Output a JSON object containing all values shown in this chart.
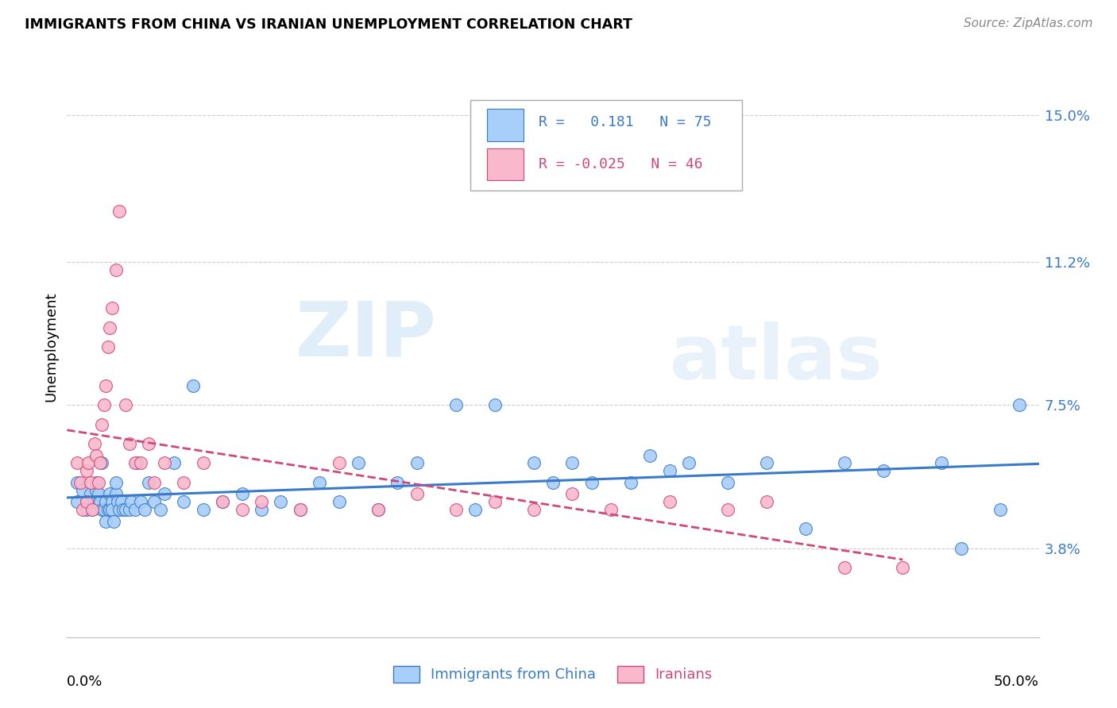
{
  "title": "IMMIGRANTS FROM CHINA VS IRANIAN UNEMPLOYMENT CORRELATION CHART",
  "source": "Source: ZipAtlas.com",
  "ylabel": "Unemployment",
  "yticks": [
    0.038,
    0.075,
    0.112,
    0.15
  ],
  "ytick_labels": [
    "3.8%",
    "7.5%",
    "11.2%",
    "15.0%"
  ],
  "xlim": [
    0.0,
    0.5
  ],
  "ylim": [
    0.015,
    0.165
  ],
  "color_china": "#A8CEFA",
  "color_iran": "#FAB8CC",
  "color_line_china": "#3A7AC8",
  "color_line_iran": "#D04878",
  "watermark_zip": "ZIP",
  "watermark_atlas": "atlas",
  "china_x": [
    0.005,
    0.005,
    0.008,
    0.01,
    0.01,
    0.012,
    0.013,
    0.014,
    0.015,
    0.015,
    0.016,
    0.017,
    0.018,
    0.018,
    0.019,
    0.02,
    0.02,
    0.021,
    0.022,
    0.022,
    0.023,
    0.023,
    0.024,
    0.025,
    0.025,
    0.026,
    0.027,
    0.028,
    0.029,
    0.03,
    0.032,
    0.033,
    0.035,
    0.036,
    0.038,
    0.04,
    0.042,
    0.045,
    0.048,
    0.05,
    0.055,
    0.06,
    0.065,
    0.07,
    0.08,
    0.09,
    0.1,
    0.11,
    0.12,
    0.13,
    0.14,
    0.15,
    0.16,
    0.17,
    0.18,
    0.2,
    0.21,
    0.22,
    0.24,
    0.25,
    0.26,
    0.27,
    0.29,
    0.3,
    0.31,
    0.32,
    0.34,
    0.36,
    0.38,
    0.4,
    0.42,
    0.45,
    0.46,
    0.48,
    0.49
  ],
  "china_y": [
    0.05,
    0.055,
    0.053,
    0.05,
    0.048,
    0.052,
    0.048,
    0.05,
    0.055,
    0.053,
    0.052,
    0.05,
    0.048,
    0.06,
    0.048,
    0.045,
    0.05,
    0.048,
    0.052,
    0.048,
    0.05,
    0.048,
    0.045,
    0.052,
    0.055,
    0.05,
    0.048,
    0.05,
    0.048,
    0.048,
    0.048,
    0.05,
    0.048,
    0.06,
    0.05,
    0.048,
    0.055,
    0.05,
    0.048,
    0.052,
    0.06,
    0.05,
    0.08,
    0.048,
    0.05,
    0.052,
    0.048,
    0.05,
    0.048,
    0.055,
    0.05,
    0.06,
    0.048,
    0.055,
    0.06,
    0.075,
    0.048,
    0.075,
    0.06,
    0.055,
    0.06,
    0.055,
    0.055,
    0.062,
    0.058,
    0.06,
    0.055,
    0.06,
    0.043,
    0.06,
    0.058,
    0.06,
    0.038,
    0.048,
    0.075
  ],
  "iran_x": [
    0.005,
    0.007,
    0.008,
    0.01,
    0.01,
    0.011,
    0.012,
    0.013,
    0.014,
    0.015,
    0.016,
    0.017,
    0.018,
    0.019,
    0.02,
    0.021,
    0.022,
    0.023,
    0.025,
    0.027,
    0.03,
    0.032,
    0.035,
    0.038,
    0.042,
    0.045,
    0.05,
    0.06,
    0.07,
    0.08,
    0.09,
    0.1,
    0.12,
    0.14,
    0.16,
    0.18,
    0.2,
    0.22,
    0.24,
    0.26,
    0.28,
    0.31,
    0.34,
    0.36,
    0.4,
    0.43
  ],
  "iran_y": [
    0.06,
    0.055,
    0.048,
    0.058,
    0.05,
    0.06,
    0.055,
    0.048,
    0.065,
    0.062,
    0.055,
    0.06,
    0.07,
    0.075,
    0.08,
    0.09,
    0.095,
    0.1,
    0.11,
    0.125,
    0.075,
    0.065,
    0.06,
    0.06,
    0.065,
    0.055,
    0.06,
    0.055,
    0.06,
    0.05,
    0.048,
    0.05,
    0.048,
    0.06,
    0.048,
    0.052,
    0.048,
    0.05,
    0.048,
    0.052,
    0.048,
    0.05,
    0.048,
    0.05,
    0.033,
    0.033
  ]
}
